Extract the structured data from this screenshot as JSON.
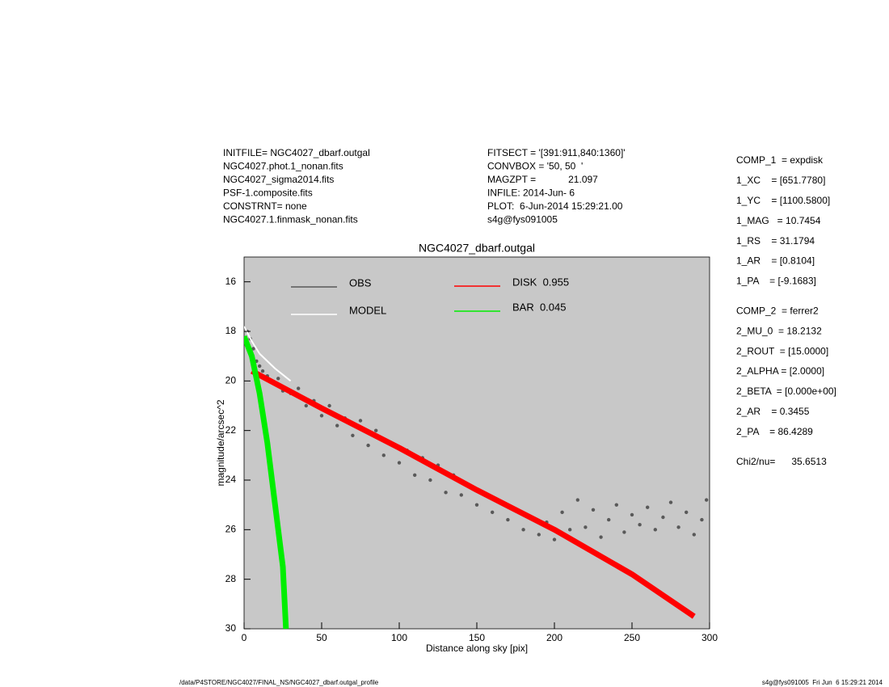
{
  "header": {
    "left": [
      "INITFILE= NGC4027_dbarf.outgal",
      "NGC4027.phot.1_nonan.fits",
      "NGC4027_sigma2014.fits",
      "PSF-1.composite.fits",
      "CONSTRNT= none",
      "NGC4027.1.finmask_nonan.fits"
    ],
    "middle": [
      "FITSECT = '[391:911,840:1360]'",
      "CONVBOX = '50, 50  '",
      "MAGZPT =            21.097",
      "INFILE: 2014-Jun- 6",
      "PLOT:  6-Jun-2014 15:29:21.00",
      "s4g@fys091005"
    ]
  },
  "params": [
    [
      "COMP_1  = expdisk",
      "1_XC    = [651.7780]",
      "1_YC    = [1100.5800]",
      "1_MAG   = 10.7454",
      "1_RS    = 31.1794",
      "1_AR    = [0.8104]",
      "1_PA    = [-9.1683]"
    ],
    [
      "COMP_2  = ferrer2",
      "2_MU_0  = 18.2132",
      "2_ROUT  = [15.0000]",
      "2_ALPHA = [2.0000]",
      "2_BETA  = [0.000e+00]",
      "2_AR    = 0.3455",
      "2_PA    = 86.4289"
    ],
    [
      "Chi2/nu=      35.6513"
    ]
  ],
  "footer": {
    "left": "/data/P4STORE/NGC4027/FINAL_NS/NGC4027_dbarf.outgal_profile",
    "right": "s4g@fys091005  Fri Jun  6 15:29:21 2014"
  },
  "chart_data": {
    "type": "scatter",
    "title": "NGC4027_dbarf.outgal",
    "x_label": "Distance along sky [pix]",
    "y_label": "magnitude/arcsec^2",
    "xlim": [
      0,
      300
    ],
    "ylim": [
      30,
      15
    ],
    "xticks": [
      0,
      50,
      100,
      150,
      200,
      250,
      300
    ],
    "yticks": [
      16,
      18,
      20,
      22,
      24,
      26,
      28,
      30
    ],
    "background": "#c8c8c8",
    "series": [
      {
        "name": "OBS",
        "color": "#595959",
        "style": "points",
        "x": [
          2,
          4,
          6,
          8,
          10,
          12,
          15,
          18,
          22,
          25,
          30,
          35,
          40,
          45,
          50,
          55,
          60,
          65,
          70,
          75,
          80,
          85,
          90,
          95,
          100,
          105,
          110,
          115,
          120,
          125,
          130,
          135,
          140,
          145,
          150,
          155,
          160,
          165,
          170,
          175,
          180,
          185,
          190,
          195,
          200,
          205,
          210,
          215,
          220,
          225,
          230,
          235,
          240,
          245,
          250,
          255,
          260,
          265,
          270,
          275,
          280,
          285,
          290,
          295,
          298
        ],
        "values": [
          18,
          18.3,
          18.7,
          19.2,
          19.4,
          19.6,
          19.8,
          20,
          19.9,
          20.4,
          20.5,
          20.3,
          21,
          20.8,
          21.4,
          21,
          21.8,
          21.5,
          22.2,
          21.6,
          22.6,
          22,
          23,
          22.5,
          23.3,
          22.8,
          23.8,
          23.1,
          24,
          23.4,
          24.5,
          23.8,
          24.6,
          24.2,
          25,
          24.6,
          25.3,
          24.9,
          25.6,
          25.2,
          26,
          25.5,
          26.2,
          25.7,
          26.4,
          25.3,
          26,
          24.8,
          25.9,
          25.2,
          26.3,
          25.6,
          25,
          26.1,
          25.4,
          25.8,
          25.1,
          26,
          25.5,
          24.9,
          25.9,
          25.3,
          26.2,
          25.6,
          24.8
        ]
      },
      {
        "name": "MODEL",
        "color": "#ffffff",
        "style": "line",
        "x": [
          0,
          5,
          10,
          20,
          30
        ],
        "values": [
          17.8,
          18.4,
          18.9,
          19.5,
          20.0
        ]
      },
      {
        "name": "DISK  0.955",
        "color": "#ff0000",
        "style": "band",
        "x": [
          5,
          50,
          100,
          150,
          200,
          250,
          290
        ],
        "values": [
          19.6,
          21.1,
          22.7,
          24.4,
          26.0,
          27.8,
          29.5
        ]
      },
      {
        "name": "BAR  0.045",
        "color": "#00ee00",
        "style": "band",
        "x": [
          0,
          5,
          10,
          15,
          20,
          25,
          27
        ],
        "values": [
          18.2,
          19.0,
          20.5,
          22.5,
          25.0,
          27.5,
          30.0
        ]
      }
    ]
  }
}
